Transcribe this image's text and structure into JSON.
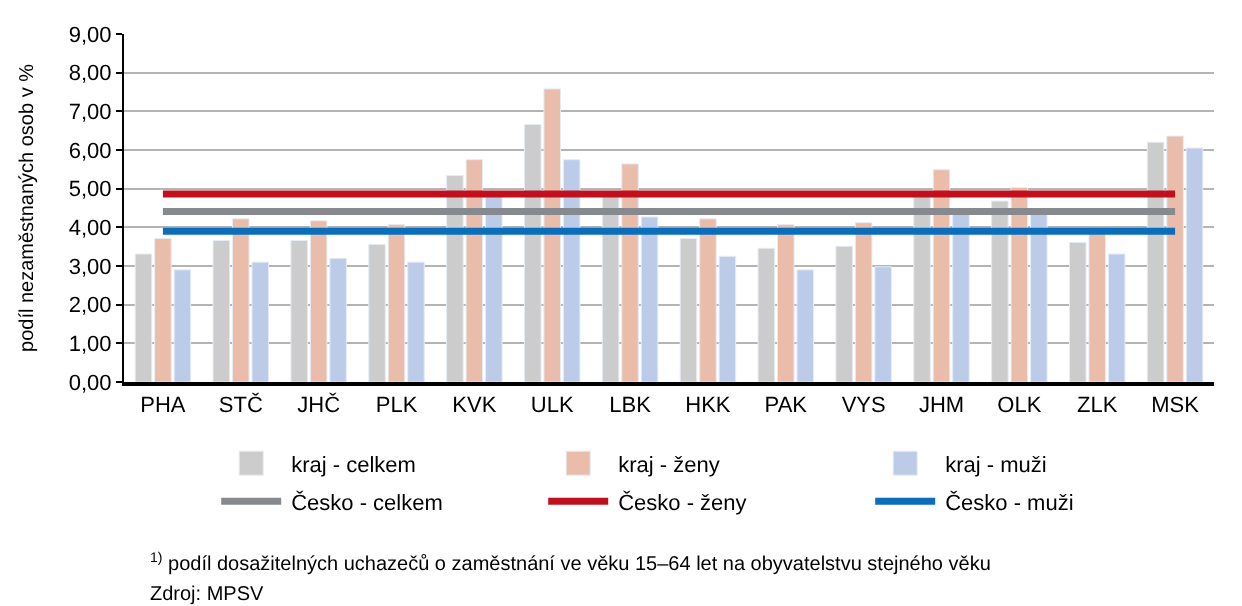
{
  "chart_data": {
    "type": "bar",
    "ylabel": "podíl nezaměstnaných osob v %",
    "categories": [
      "PHA",
      "STČ",
      "JHČ",
      "PLK",
      "KVK",
      "ULK",
      "LBK",
      "HKK",
      "PAK",
      "VYS",
      "JHM",
      "OLK",
      "ZLK",
      "MSK"
    ],
    "series": [
      {
        "name": "kraj - celkem",
        "color": "#cccccc",
        "values": [
          3.31,
          3.66,
          3.66,
          3.56,
          5.34,
          6.66,
          4.81,
          3.71,
          3.46,
          3.51,
          4.8,
          4.68,
          3.61,
          6.2
        ]
      },
      {
        "name": "kraj - ženy",
        "color": "#eabcaa",
        "values": [
          3.71,
          4.22,
          4.17,
          4.07,
          5.75,
          7.58,
          5.64,
          4.22,
          4.07,
          4.12,
          5.49,
          5.03,
          3.83,
          6.36
        ]
      },
      {
        "name": "kraj - muži",
        "color": "#bccce8",
        "values": [
          2.9,
          3.1,
          3.2,
          3.1,
          4.85,
          5.75,
          4.27,
          3.25,
          2.9,
          2.98,
          4.34,
          4.34,
          3.31,
          6.05
        ]
      },
      {
        "name": "Česko - celkem",
        "color": "#868a8e",
        "type": "line",
        "values": [
          4.41,
          4.41,
          4.41,
          4.41,
          4.41,
          4.41,
          4.41,
          4.41,
          4.41,
          4.41,
          4.41,
          4.41,
          4.41,
          4.41
        ]
      },
      {
        "name": "Česko - ženy",
        "color": "#c0101e",
        "type": "line",
        "values": [
          4.86,
          4.86,
          4.86,
          4.86,
          4.86,
          4.86,
          4.86,
          4.86,
          4.86,
          4.86,
          4.86,
          4.86,
          4.86,
          4.86
        ]
      },
      {
        "name": "Česko - muži",
        "color": "#0a6ebd",
        "type": "line",
        "values": [
          3.9,
          3.9,
          3.9,
          3.9,
          3.9,
          3.9,
          3.9,
          3.9,
          3.9,
          3.9,
          3.9,
          3.9,
          3.9,
          3.9
        ]
      }
    ],
    "ylim": [
      0,
      9
    ],
    "yticks": [
      {
        "value": 0,
        "label": "0,00"
      },
      {
        "value": 1,
        "label": "1,00"
      },
      {
        "value": 2,
        "label": "2,00"
      },
      {
        "value": 3,
        "label": "3,00"
      },
      {
        "value": 4,
        "label": "4,00"
      },
      {
        "value": 5,
        "label": "5,00"
      },
      {
        "value": 6,
        "label": "6,00"
      },
      {
        "value": 7,
        "label": "7,00"
      },
      {
        "value": 8,
        "label": "8,00"
      },
      {
        "value": 9,
        "label": "9,00"
      }
    ],
    "grid": "y",
    "legend": "bottom",
    "marker": "none",
    "line_style": "solid",
    "annotations": [
      "$^{1)}$ podíl dosažitelných uchazečů o zaměstnání ve věku 15–64 let na obyvatelstvu stejného věku",
      "Zdroj: MPSV"
    ]
  }
}
